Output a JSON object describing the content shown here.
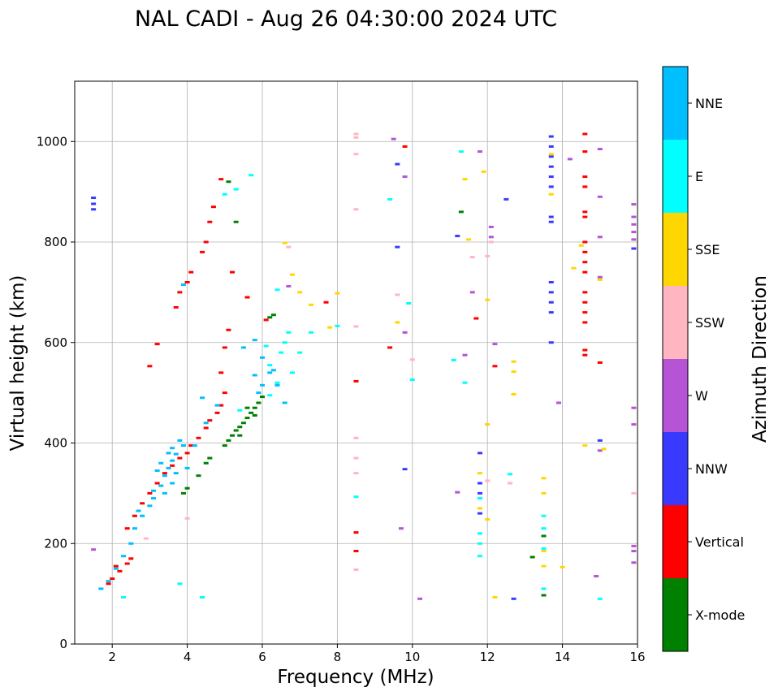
{
  "chart_data": {
    "type": "scatter",
    "title": "NAL CADI - Aug 26 04:30:00 2024 UTC",
    "xlabel": "Frequency (MHz)",
    "ylabel": "Virtual height (km)",
    "xlim": [
      1,
      16
    ],
    "ylim": [
      0,
      1120
    ],
    "xticks": [
      2,
      4,
      6,
      8,
      10,
      12,
      14,
      16
    ],
    "yticks": [
      0,
      200,
      400,
      600,
      800,
      1000
    ],
    "grid": true,
    "colorbar": {
      "label": "Azimuth Direction",
      "categories": [
        {
          "name": "X-mode",
          "color": "#008000"
        },
        {
          "name": "Vertical",
          "color": "#ff0000"
        },
        {
          "name": "NNW",
          "color": "#3a3aff"
        },
        {
          "name": "W",
          "color": "#b555d6"
        },
        {
          "name": "SSW",
          "color": "#ffb6c1"
        },
        {
          "name": "SSE",
          "color": "#ffd700"
        },
        {
          "name": "E",
          "color": "#00ffff"
        },
        {
          "name": "NNE",
          "color": "#00bfff"
        }
      ]
    },
    "series": [
      {
        "name": "X-mode",
        "points": [
          [
            3.9,
            300
          ],
          [
            4.0,
            310
          ],
          [
            4.3,
            335
          ],
          [
            4.5,
            360
          ],
          [
            4.6,
            370
          ],
          [
            5.0,
            395
          ],
          [
            5.1,
            405
          ],
          [
            5.2,
            415
          ],
          [
            5.3,
            425
          ],
          [
            5.4,
            432
          ],
          [
            5.5,
            440
          ],
          [
            5.6,
            450
          ],
          [
            5.7,
            460
          ],
          [
            5.8,
            470
          ],
          [
            5.9,
            480
          ],
          [
            6.0,
            492
          ],
          [
            5.6,
            470
          ],
          [
            5.8,
            455
          ],
          [
            5.4,
            415
          ],
          [
            6.2,
            650
          ],
          [
            6.3,
            655
          ],
          [
            11.3,
            860
          ],
          [
            13.5,
            215
          ],
          [
            13.5,
            97
          ],
          [
            13.2,
            173
          ],
          [
            5.1,
            920
          ],
          [
            5.3,
            840
          ]
        ]
      },
      {
        "name": "Vertical",
        "points": [
          [
            1.9,
            120
          ],
          [
            2.0,
            130
          ],
          [
            2.2,
            145
          ],
          [
            2.4,
            160
          ],
          [
            2.1,
            155
          ],
          [
            2.5,
            170
          ],
          [
            2.4,
            230
          ],
          [
            2.6,
            255
          ],
          [
            2.8,
            280
          ],
          [
            3.0,
            300
          ],
          [
            3.2,
            320
          ],
          [
            3.4,
            340
          ],
          [
            3.6,
            355
          ],
          [
            3.8,
            370
          ],
          [
            4.0,
            380
          ],
          [
            4.1,
            395
          ],
          [
            4.3,
            410
          ],
          [
            4.5,
            430
          ],
          [
            4.6,
            445
          ],
          [
            4.8,
            460
          ],
          [
            4.9,
            475
          ],
          [
            5.0,
            500
          ],
          [
            4.9,
            540
          ],
          [
            5.0,
            590
          ],
          [
            5.1,
            625
          ],
          [
            3.7,
            670
          ],
          [
            3.8,
            700
          ],
          [
            4.0,
            720
          ],
          [
            4.1,
            740
          ],
          [
            4.4,
            780
          ],
          [
            4.5,
            800
          ],
          [
            4.6,
            840
          ],
          [
            4.7,
            870
          ],
          [
            4.9,
            925
          ],
          [
            3.2,
            597
          ],
          [
            3.0,
            553
          ],
          [
            8.5,
            523
          ],
          [
            8.5,
            222
          ],
          [
            8.5,
            185
          ],
          [
            9.4,
            590
          ],
          [
            9.8,
            990
          ],
          [
            11.7,
            648
          ],
          [
            12.2,
            553
          ],
          [
            14.6,
            1015
          ],
          [
            14.6,
            980
          ],
          [
            14.6,
            930
          ],
          [
            14.6,
            910
          ],
          [
            14.6,
            860
          ],
          [
            14.6,
            850
          ],
          [
            14.6,
            800
          ],
          [
            14.6,
            780
          ],
          [
            14.6,
            760
          ],
          [
            14.6,
            740
          ],
          [
            14.6,
            700
          ],
          [
            14.6,
            680
          ],
          [
            14.6,
            660
          ],
          [
            14.6,
            640
          ],
          [
            14.6,
            585
          ],
          [
            14.6,
            575
          ],
          [
            15.0,
            560
          ],
          [
            6.1,
            645
          ],
          [
            5.6,
            690
          ],
          [
            5.2,
            740
          ],
          [
            7.7,
            680
          ]
        ]
      },
      {
        "name": "NNW",
        "points": [
          [
            1.5,
            888
          ],
          [
            1.5,
            876
          ],
          [
            1.5,
            865
          ],
          [
            9.6,
            955
          ],
          [
            9.6,
            790
          ],
          [
            9.8,
            348
          ],
          [
            11.2,
            812
          ],
          [
            12.5,
            885
          ],
          [
            12.7,
            90
          ],
          [
            13.7,
            1010
          ],
          [
            13.7,
            990
          ],
          [
            13.7,
            970
          ],
          [
            13.7,
            950
          ],
          [
            13.7,
            930
          ],
          [
            13.7,
            910
          ],
          [
            13.7,
            850
          ],
          [
            13.7,
            840
          ],
          [
            13.7,
            720
          ],
          [
            13.7,
            700
          ],
          [
            13.7,
            680
          ],
          [
            13.7,
            660
          ],
          [
            13.7,
            600
          ],
          [
            15.0,
            405
          ],
          [
            15.9,
            787
          ],
          [
            11.8,
            380
          ],
          [
            11.8,
            300
          ],
          [
            11.8,
            260
          ],
          [
            11.8,
            320
          ]
        ]
      },
      {
        "name": "W",
        "points": [
          [
            9.5,
            1005
          ],
          [
            9.8,
            930
          ],
          [
            9.8,
            620
          ],
          [
            9.7,
            230
          ],
          [
            10.2,
            90
          ],
          [
            11.8,
            980
          ],
          [
            12.1,
            830
          ],
          [
            12.1,
            810
          ],
          [
            11.4,
            575
          ],
          [
            11.6,
            700
          ],
          [
            12.2,
            597
          ],
          [
            13.9,
            480
          ],
          [
            14.2,
            965
          ],
          [
            15.0,
            985
          ],
          [
            15.0,
            890
          ],
          [
            15.0,
            810
          ],
          [
            15.0,
            730
          ],
          [
            14.9,
            135
          ],
          [
            15.0,
            385
          ],
          [
            15.9,
            875
          ],
          [
            15.9,
            850
          ],
          [
            15.9,
            835
          ],
          [
            15.9,
            820
          ],
          [
            15.9,
            805
          ],
          [
            15.9,
            470
          ],
          [
            15.9,
            437
          ],
          [
            15.9,
            195
          ],
          [
            15.9,
            185
          ],
          [
            15.9,
            162
          ],
          [
            6.7,
            712
          ],
          [
            1.5,
            188
          ],
          [
            11.2,
            302
          ]
        ]
      },
      {
        "name": "SSW",
        "points": [
          [
            8.5,
            1015
          ],
          [
            8.5,
            1008
          ],
          [
            8.5,
            975
          ],
          [
            8.5,
            865
          ],
          [
            8.5,
            632
          ],
          [
            8.5,
            410
          ],
          [
            8.5,
            370
          ],
          [
            8.5,
            340
          ],
          [
            8.5,
            148
          ],
          [
            9.6,
            695
          ],
          [
            10.0,
            566
          ],
          [
            12.6,
            320
          ],
          [
            12.0,
            325
          ],
          [
            6.7,
            790
          ],
          [
            11.6,
            770
          ],
          [
            12.0,
            772
          ],
          [
            12.1,
            800
          ],
          [
            15.9,
            300
          ],
          [
            2.9,
            210
          ],
          [
            4.0,
            250
          ]
        ]
      },
      {
        "name": "SSE",
        "points": [
          [
            6.6,
            798
          ],
          [
            6.8,
            735
          ],
          [
            7.0,
            700
          ],
          [
            7.3,
            675
          ],
          [
            7.8,
            630
          ],
          [
            8.0,
            698
          ],
          [
            11.4,
            925
          ],
          [
            11.5,
            805
          ],
          [
            11.9,
            940
          ],
          [
            12.0,
            685
          ],
          [
            12.0,
            437
          ],
          [
            12.0,
            248
          ],
          [
            12.2,
            93
          ],
          [
            12.7,
            562
          ],
          [
            12.7,
            542
          ],
          [
            12.7,
            497
          ],
          [
            13.5,
            330
          ],
          [
            13.5,
            300
          ],
          [
            13.5,
            185
          ],
          [
            13.5,
            155
          ],
          [
            14.3,
            748
          ],
          [
            14.5,
            793
          ],
          [
            14.6,
            395
          ],
          [
            14.0,
            153
          ],
          [
            15.0,
            725
          ],
          [
            15.1,
            388
          ],
          [
            11.8,
            270
          ],
          [
            11.8,
            340
          ],
          [
            9.6,
            640
          ],
          [
            13.7,
            895
          ],
          [
            13.7,
            975
          ]
        ]
      },
      {
        "name": "E",
        "points": [
          [
            5.0,
            895
          ],
          [
            5.3,
            905
          ],
          [
            5.7,
            933
          ],
          [
            6.4,
            705
          ],
          [
            6.1,
            593
          ],
          [
            6.5,
            580
          ],
          [
            6.2,
            555
          ],
          [
            6.8,
            540
          ],
          [
            7.0,
            580
          ],
          [
            7.3,
            620
          ],
          [
            6.7,
            620
          ],
          [
            6.6,
            600
          ],
          [
            6.4,
            520
          ],
          [
            6.2,
            495
          ],
          [
            8.0,
            633
          ],
          [
            8.5,
            293
          ],
          [
            9.4,
            885
          ],
          [
            9.9,
            678
          ],
          [
            10.0,
            526
          ],
          [
            11.1,
            565
          ],
          [
            11.3,
            980
          ],
          [
            11.4,
            520
          ],
          [
            12.6,
            338
          ],
          [
            13.5,
            255
          ],
          [
            13.5,
            230
          ],
          [
            13.5,
            190
          ],
          [
            13.5,
            110
          ],
          [
            11.8,
            290
          ],
          [
            11.8,
            220
          ],
          [
            11.8,
            200
          ],
          [
            11.8,
            175
          ],
          [
            15.0,
            90
          ],
          [
            4.4,
            93
          ],
          [
            2.3,
            93
          ],
          [
            3.8,
            120
          ],
          [
            5.4,
            465
          ]
        ]
      },
      {
        "name": "NNE",
        "points": [
          [
            1.7,
            110
          ],
          [
            1.9,
            125
          ],
          [
            2.1,
            150
          ],
          [
            2.3,
            175
          ],
          [
            2.5,
            200
          ],
          [
            2.6,
            230
          ],
          [
            2.8,
            255
          ],
          [
            3.0,
            275
          ],
          [
            3.1,
            290
          ],
          [
            3.3,
            315
          ],
          [
            3.4,
            335
          ],
          [
            3.5,
            350
          ],
          [
            3.6,
            365
          ],
          [
            3.7,
            378
          ],
          [
            3.9,
            395
          ],
          [
            3.6,
            390
          ],
          [
            3.8,
            405
          ],
          [
            3.5,
            380
          ],
          [
            3.3,
            360
          ],
          [
            3.2,
            345
          ],
          [
            3.4,
            300
          ],
          [
            3.6,
            320
          ],
          [
            4.0,
            350
          ],
          [
            3.9,
            715
          ],
          [
            4.4,
            490
          ],
          [
            5.5,
            590
          ],
          [
            5.8,
            605
          ],
          [
            6.0,
            570
          ],
          [
            6.2,
            540
          ],
          [
            6.4,
            515
          ],
          [
            6.6,
            480
          ],
          [
            6.0,
            515
          ],
          [
            5.8,
            535
          ],
          [
            5.9,
            500
          ],
          [
            6.3,
            545
          ],
          [
            2.7,
            265
          ],
          [
            3.1,
            305
          ],
          [
            3.7,
            340
          ],
          [
            4.2,
            395
          ],
          [
            4.5,
            440
          ],
          [
            4.8,
            475
          ]
        ]
      }
    ]
  }
}
